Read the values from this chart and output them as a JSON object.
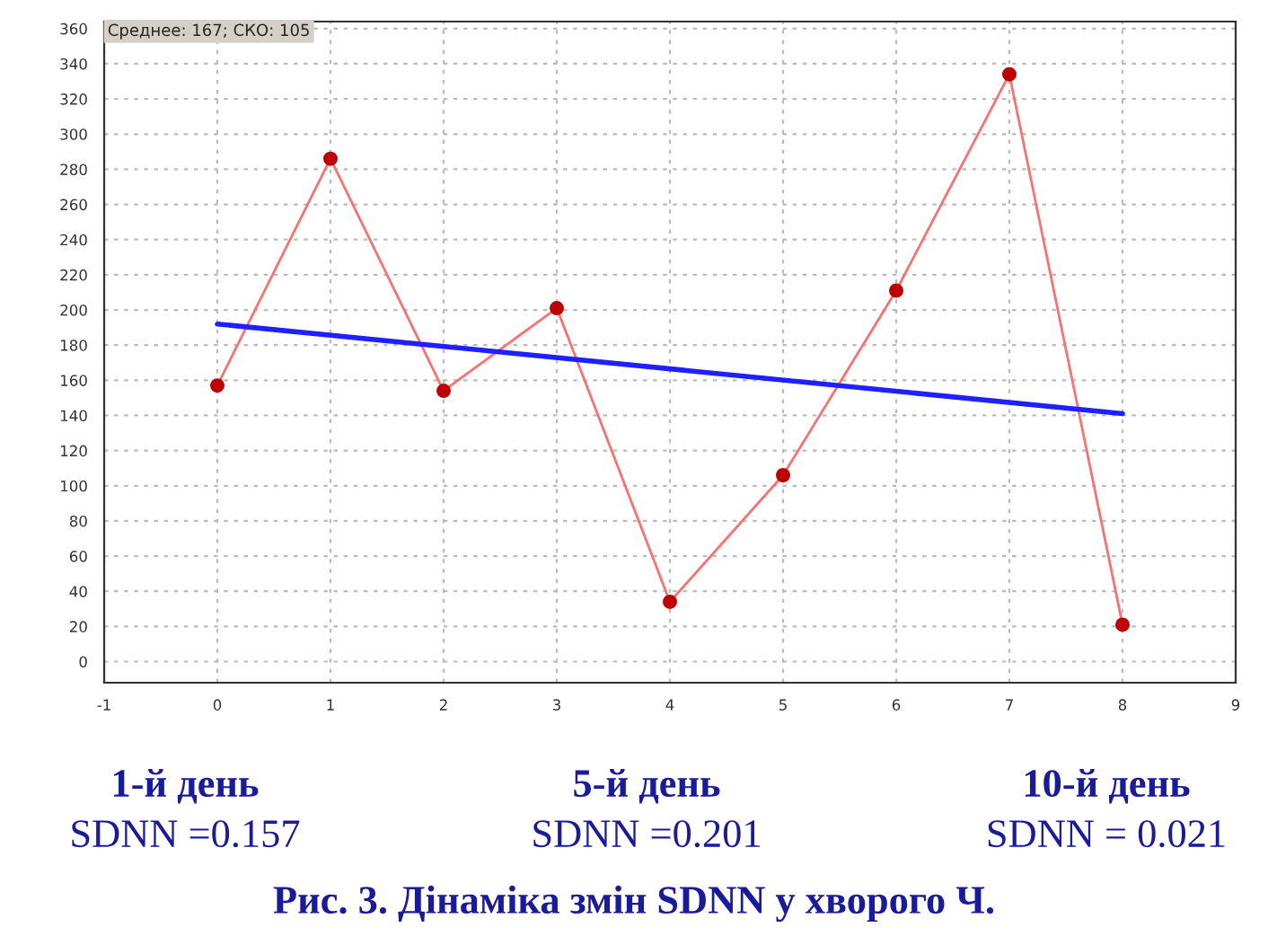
{
  "chart_data": {
    "type": "line",
    "x": [
      0,
      1,
      2,
      3,
      4,
      5,
      6,
      7,
      8
    ],
    "series": [
      {
        "color": "#ff6f6f",
        "values": [
          157,
          286,
          154,
          201,
          34,
          106,
          211,
          334,
          21
        ],
        "marker": "circle"
      },
      {
        "type": "line",
        "color": "#1f1fff",
        "x": [
          0,
          8
        ],
        "values": [
          192,
          141
        ],
        "marker": "none"
      }
    ],
    "xlim": [
      -1,
      9
    ],
    "xticks": [
      -1,
      0,
      1,
      2,
      3,
      4,
      5,
      6,
      7,
      8,
      9
    ],
    "ylim": [
      -12,
      364
    ],
    "yticks": [
      0,
      20,
      40,
      60,
      80,
      100,
      120,
      140,
      160,
      180,
      200,
      220,
      240,
      260,
      280,
      300,
      320,
      340,
      360
    ],
    "grid": true,
    "annotations": [
      "Среднее: 167; СКО: 105",
      "1-й день",
      "5-й день",
      "10-й день",
      "SDNN =0.157",
      "SDNN =0.201",
      "SDNN = 0.021",
      "Рис. 3. Дінаміка змін SDNN у хворого Ч."
    ]
  }
}
